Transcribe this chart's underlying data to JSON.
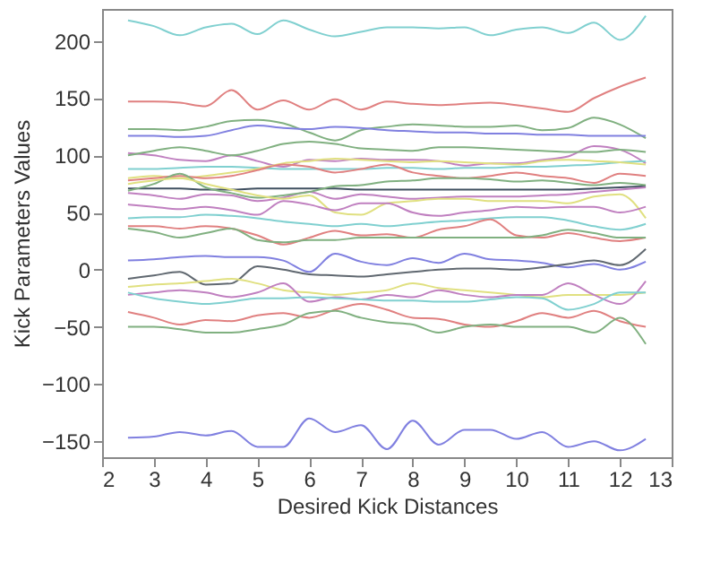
{
  "chart_data": {
    "type": "line",
    "xlabel": "Desired Kick Distances",
    "ylabel": "Kick Parameters Values",
    "x": [
      2.5,
      3,
      3.5,
      4,
      4.5,
      5,
      5.5,
      6,
      6.5,
      7,
      7.5,
      8,
      8.5,
      9,
      9.5,
      10,
      10.5,
      11,
      11.5,
      12,
      12.5
    ],
    "xlim": [
      2,
      13
    ],
    "xticks": [
      2,
      3,
      4,
      5,
      6,
      7,
      8,
      9,
      10,
      11,
      12,
      13
    ],
    "ylim": [
      -164,
      228
    ],
    "yticks": [
      -150,
      -100,
      -50,
      0,
      50,
      100,
      150,
      200
    ],
    "grid": false,
    "legend": false,
    "marker": "none",
    "line_style": "solid",
    "series": [
      {
        "color": "#80d0d0",
        "values": [
          218,
          213,
          205,
          212,
          215,
          206,
          218,
          210,
          204,
          208,
          212,
          212,
          211,
          212,
          205,
          210,
          212,
          207,
          216,
          201,
          222
        ]
      },
      {
        "color": "#e08080",
        "values": [
          147,
          147,
          146,
          143,
          157,
          140,
          148,
          140,
          149,
          140,
          147,
          145,
          144,
          145,
          146,
          144,
          141,
          138,
          150,
          160,
          168
        ]
      },
      {
        "color": "#80b080",
        "values": [
          123,
          123,
          122,
          125,
          130,
          131,
          128,
          120,
          113,
          122,
          125,
          127,
          126,
          125,
          125,
          126,
          122,
          124,
          133,
          127,
          115
        ]
      },
      {
        "color": "#8080e0",
        "values": [
          117,
          117,
          116,
          117,
          122,
          126,
          124,
          123,
          125,
          124,
          122,
          121,
          120,
          120,
          119,
          119,
          118,
          118,
          117,
          117,
          117
        ]
      },
      {
        "color": "#c080c0",
        "values": [
          102,
          100,
          96,
          95,
          100,
          95,
          90,
          96,
          95,
          97,
          96,
          96,
          95,
          91,
          93,
          93,
          96,
          99,
          108,
          105,
          93
        ]
      },
      {
        "color": "#80b080",
        "values": [
          100,
          104,
          107,
          104,
          100,
          104,
          110,
          112,
          110,
          106,
          105,
          104,
          107,
          107,
          106,
          105,
          104,
          103,
          103,
          105,
          103
        ]
      },
      {
        "color": "#80d0d0",
        "values": [
          88,
          88,
          89,
          90,
          90,
          89,
          88,
          88,
          88,
          88,
          89,
          89,
          88,
          89,
          89,
          90,
          90,
          91,
          92,
          94,
          95
        ]
      },
      {
        "color": "#e0e080",
        "values": [
          80,
          82,
          80,
          82,
          85,
          88,
          93,
          95,
          97,
          96,
          95,
          94,
          95,
          94,
          93,
          92,
          95,
          96,
          95,
          94,
          92
        ]
      },
      {
        "color": "#e08080",
        "values": [
          78,
          80,
          82,
          80,
          82,
          87,
          92,
          90,
          85,
          88,
          92,
          85,
          82,
          80,
          82,
          85,
          82,
          80,
          76,
          84,
          82
        ]
      },
      {
        "color": "#405060",
        "values": [
          71,
          71,
          71,
          70,
          70,
          71,
          71,
          71,
          71,
          70,
          70,
          70,
          70,
          70,
          70,
          70,
          70,
          70,
          71,
          72,
          73
        ]
      },
      {
        "color": "#c080c0",
        "values": [
          67,
          65,
          62,
          66,
          65,
          60,
          63,
          68,
          62,
          66,
          64,
          62,
          63,
          64,
          64,
          64,
          65,
          66,
          68,
          70,
          72
        ]
      },
      {
        "color": "#80b080",
        "values": [
          69,
          75,
          84,
          72,
          67,
          63,
          65,
          68,
          73,
          74,
          77,
          78,
          80,
          80,
          79,
          77,
          78,
          76,
          74,
          76,
          74
        ]
      },
      {
        "color": "#e0e080",
        "values": [
          75,
          78,
          80,
          75,
          70,
          65,
          62,
          65,
          50,
          48,
          58,
          60,
          62,
          62,
          60,
          60,
          60,
          58,
          64,
          66,
          45
        ]
      },
      {
        "color": "#c080c0",
        "values": [
          57,
          55,
          53,
          55,
          52,
          48,
          60,
          57,
          52,
          58,
          58,
          50,
          47,
          50,
          52,
          55,
          54,
          55,
          55,
          50,
          55
        ]
      },
      {
        "color": "#80d0d0",
        "values": [
          45,
          46,
          46,
          48,
          47,
          45,
          42,
          40,
          38,
          40,
          38,
          40,
          42,
          43,
          45,
          46,
          46,
          43,
          38,
          35,
          40
        ]
      },
      {
        "color": "#e08080",
        "values": [
          38,
          38,
          36,
          38,
          36,
          30,
          22,
          28,
          34,
          30,
          31,
          28,
          35,
          38,
          44,
          30,
          28,
          32,
          28,
          25,
          28
        ]
      },
      {
        "color": "#80b080",
        "values": [
          36,
          33,
          28,
          32,
          36,
          26,
          24,
          26,
          26,
          28,
          28,
          28,
          28,
          28,
          28,
          28,
          30,
          35,
          32,
          28,
          28
        ]
      },
      {
        "color": "#8080e0",
        "values": [
          8,
          9,
          11,
          12,
          11,
          11,
          8,
          -2,
          14,
          7,
          4,
          10,
          6,
          14,
          9,
          8,
          6,
          2,
          5,
          0,
          7
        ]
      },
      {
        "color": "#606870",
        "values": [
          -8,
          -5,
          -2,
          -13,
          -12,
          3,
          0,
          -4,
          -5,
          -6,
          -4,
          -2,
          0,
          1,
          1,
          0,
          2,
          5,
          8,
          4,
          18
        ]
      },
      {
        "color": "#e0e080",
        "values": [
          -15,
          -13,
          -12,
          -10,
          -8,
          -12,
          -18,
          -20,
          -22,
          -20,
          -18,
          -12,
          -16,
          -18,
          -20,
          -22,
          -24,
          -22,
          -22,
          -22,
          -20
        ]
      },
      {
        "color": "#c080c0",
        "values": [
          -22,
          -20,
          -18,
          -20,
          -24,
          -20,
          -12,
          -28,
          -24,
          -26,
          -22,
          -24,
          -18,
          -22,
          -24,
          -22,
          -22,
          -12,
          -22,
          -30,
          -10
        ]
      },
      {
        "color": "#80d0d0",
        "values": [
          -20,
          -25,
          -28,
          -30,
          -28,
          -25,
          -25,
          -24,
          -25,
          -26,
          -27,
          -27,
          -28,
          -28,
          -26,
          -24,
          -25,
          -35,
          -30,
          -20,
          -20
        ]
      },
      {
        "color": "#e08080",
        "values": [
          -37,
          -42,
          -48,
          -44,
          -45,
          -40,
          -38,
          -42,
          -35,
          -30,
          -35,
          -42,
          -43,
          -48,
          -50,
          -45,
          -38,
          -42,
          -36,
          -45,
          -50
        ]
      },
      {
        "color": "#80b080",
        "values": [
          -50,
          -50,
          -52,
          -55,
          -55,
          -52,
          -48,
          -38,
          -36,
          -42,
          -46,
          -48,
          -55,
          -50,
          -48,
          -50,
          -50,
          -50,
          -55,
          -42,
          -65
        ]
      },
      {
        "color": "#8080e0",
        "values": [
          -147,
          -146,
          -142,
          -145,
          -141,
          -155,
          -155,
          -130,
          -142,
          -136,
          -157,
          -132,
          -153,
          -140,
          -140,
          -148,
          -142,
          -155,
          -150,
          -158,
          -148
        ]
      }
    ]
  }
}
